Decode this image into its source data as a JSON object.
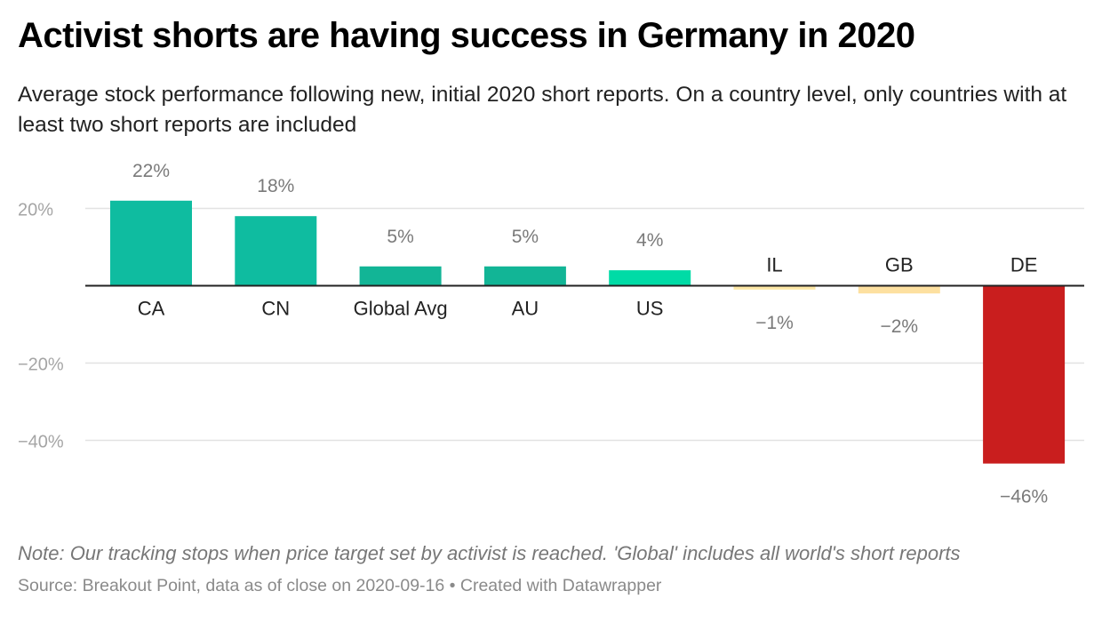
{
  "title": "Activist shorts are having success in Germany in 2020",
  "subtitle": "Average stock performance following new, initial 2020 short reports. On a country level, only countries with at least two short reports are included",
  "note": "Note: Our tracking stops when price target set by activist is reached. 'Global' includes all world's short reports",
  "source": "Source: Breakout Point, data as of close on 2020-09-16 • Created with Datawrapper",
  "chart_data": {
    "type": "bar",
    "categories": [
      "CA",
      "CN",
      "Global Avg",
      "AU",
      "US",
      "IL",
      "GB",
      "DE"
    ],
    "values": [
      22,
      18,
      5,
      5,
      4,
      -1,
      -2,
      -46
    ],
    "value_labels": [
      "22%",
      "18%",
      "5%",
      "5%",
      "4%",
      "−1%",
      "−2%",
      "−46%"
    ],
    "bar_colors": [
      "#0fbca0",
      "#0fbca0",
      "#12b596",
      "#12b596",
      "#00dba6",
      "#fde8a6",
      "#fde0a0",
      "#c91e1e"
    ],
    "y_ticks": [
      20,
      -20,
      -40
    ],
    "y_tick_labels": [
      "20%",
      "−20%",
      "−40%"
    ],
    "ylim": [
      -46,
      22
    ],
    "grid": true,
    "zero_line_color": "#222222",
    "grid_color": "#e2e2e2"
  }
}
